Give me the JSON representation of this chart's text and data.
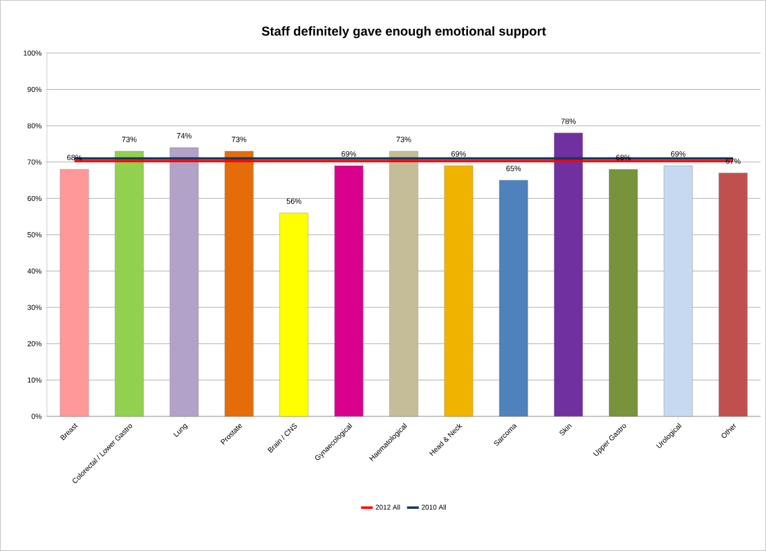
{
  "chart_data": {
    "type": "bar",
    "title": "Staff definitely gave enough emotional support",
    "categories": [
      "Breast",
      "Colorectal / Lower Gastro",
      "Lung",
      "Prostate",
      "Brain / CNS",
      "Gynaecological",
      "Haematological",
      "Head & Neck",
      "Sarcoma",
      "Skin",
      "Upper Gastro",
      "Urological",
      "Other"
    ],
    "series": [
      {
        "values": [
          68,
          73,
          74,
          73,
          56,
          69,
          73,
          69,
          65,
          78,
          68,
          69,
          67
        ],
        "colors": [
          "#ff9999",
          "#92d050",
          "#b3a2c7",
          "#e46c0a",
          "#ffff00",
          "#d9008d",
          "#c4bd97",
          "#f0b400",
          "#4f81bd",
          "#7030a0",
          "#77933c",
          "#c6d9f1",
          "#c0504d"
        ],
        "value_labels": [
          "68%",
          "73%",
          "74%",
          "73%",
          "56%",
          "69%",
          "73%",
          "69%",
          "65%",
          "78%",
          "68%",
          "69%",
          "67%"
        ]
      },
      {
        "type": "line",
        "name": "2012 All",
        "color": "#ff0000",
        "values": [
          70.3,
          70.3,
          70.3,
          70.3,
          70.3,
          70.3,
          70.3,
          70.3,
          70.3,
          70.3,
          70.3,
          70.3,
          70.3
        ]
      },
      {
        "type": "line",
        "name": "2010 All",
        "color": "#17375e",
        "values": [
          71,
          71,
          71,
          71,
          71,
          71,
          71,
          71,
          71,
          71,
          71,
          71,
          71
        ]
      }
    ],
    "ylim": [
      0,
      100
    ],
    "yticks": [
      {
        "value": 0,
        "label": "0%"
      },
      {
        "value": 10,
        "label": "10%"
      },
      {
        "value": 20,
        "label": "20%"
      },
      {
        "value": 30,
        "label": "30%"
      },
      {
        "value": 40,
        "label": "40%"
      },
      {
        "value": 50,
        "label": "50%"
      },
      {
        "value": 60,
        "label": "60%"
      },
      {
        "value": 70,
        "label": "70%"
      },
      {
        "value": 80,
        "label": "80%"
      },
      {
        "value": 90,
        "label": "90%"
      },
      {
        "value": 100,
        "label": "100%"
      }
    ],
    "grid": "y",
    "legend": "bottom"
  }
}
